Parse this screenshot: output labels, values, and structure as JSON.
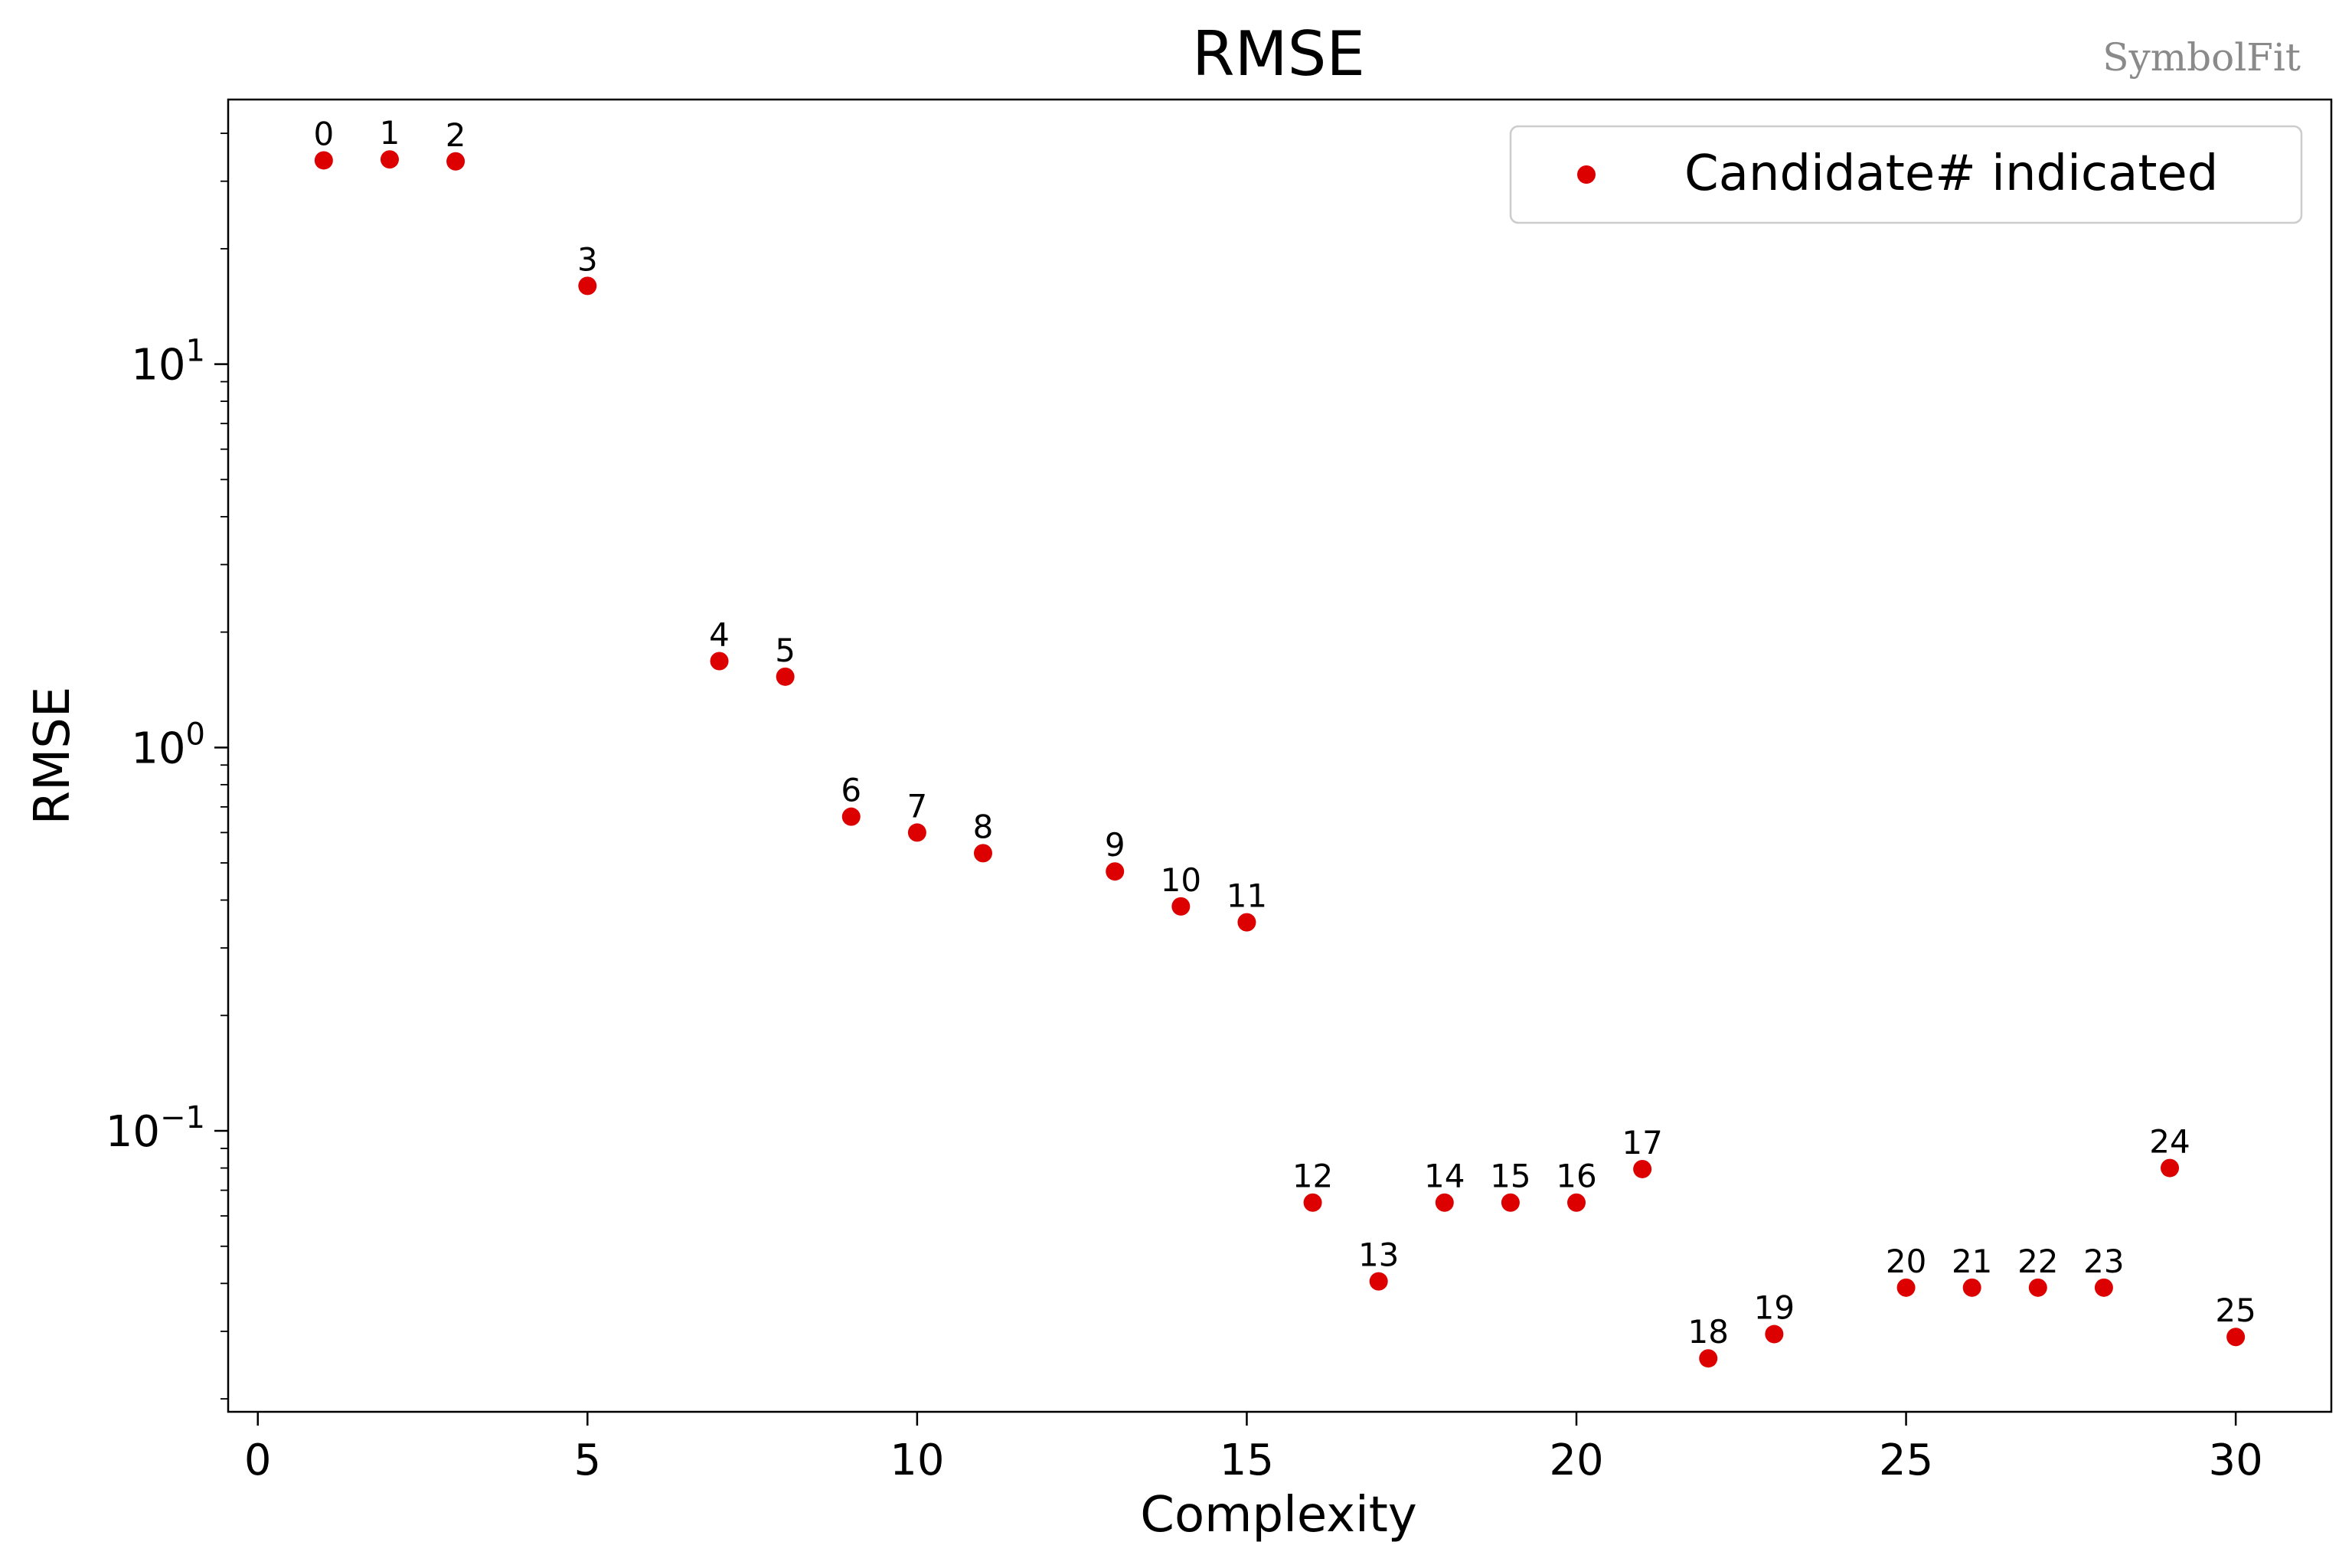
{
  "watermark": "SymbolFit",
  "chart_data": {
    "type": "scatter",
    "title": "RMSE",
    "xlabel": "Complexity",
    "ylabel": "RMSE",
    "yscale": "log",
    "xlim": [
      -0.45,
      31.45
    ],
    "ylim": [
      0.0185,
      49
    ],
    "xticks": [
      0,
      5,
      10,
      15,
      20,
      25,
      30
    ],
    "yticks": [
      {
        "value": 0.1,
        "base": "10",
        "exp": "−1"
      },
      {
        "value": 1,
        "base": "10",
        "exp": "0"
      },
      {
        "value": 10,
        "base": "10",
        "exp": "1"
      }
    ],
    "legend": {
      "label": "Candidate# indicated",
      "position": "top-right"
    },
    "marker_color": "#dd0000",
    "points": [
      {
        "label": "0",
        "x": 1,
        "y": 34.0
      },
      {
        "label": "1",
        "x": 2,
        "y": 34.2
      },
      {
        "label": "2",
        "x": 3,
        "y": 33.8
      },
      {
        "label": "3",
        "x": 5,
        "y": 16.0
      },
      {
        "label": "4",
        "x": 7,
        "y": 1.68
      },
      {
        "label": "5",
        "x": 8,
        "y": 1.53
      },
      {
        "label": "6",
        "x": 9,
        "y": 0.66
      },
      {
        "label": "7",
        "x": 10,
        "y": 0.6
      },
      {
        "label": "8",
        "x": 11,
        "y": 0.53
      },
      {
        "label": "9",
        "x": 13,
        "y": 0.475
      },
      {
        "label": "10",
        "x": 14,
        "y": 0.385
      },
      {
        "label": "11",
        "x": 15,
        "y": 0.35
      },
      {
        "label": "12",
        "x": 16,
        "y": 0.065
      },
      {
        "label": "13",
        "x": 17,
        "y": 0.0405
      },
      {
        "label": "14",
        "x": 18,
        "y": 0.065
      },
      {
        "label": "15",
        "x": 19,
        "y": 0.065
      },
      {
        "label": "16",
        "x": 20,
        "y": 0.065
      },
      {
        "label": "17",
        "x": 21,
        "y": 0.0795
      },
      {
        "label": "18",
        "x": 22,
        "y": 0.0255
      },
      {
        "label": "19",
        "x": 23,
        "y": 0.0295
      },
      {
        "label": "20",
        "x": 25,
        "y": 0.039
      },
      {
        "label": "21",
        "x": 26,
        "y": 0.039
      },
      {
        "label": "22",
        "x": 27,
        "y": 0.039
      },
      {
        "label": "23",
        "x": 28,
        "y": 0.039
      },
      {
        "label": "24",
        "x": 29,
        "y": 0.08
      },
      {
        "label": "25",
        "x": 30,
        "y": 0.029
      }
    ]
  }
}
